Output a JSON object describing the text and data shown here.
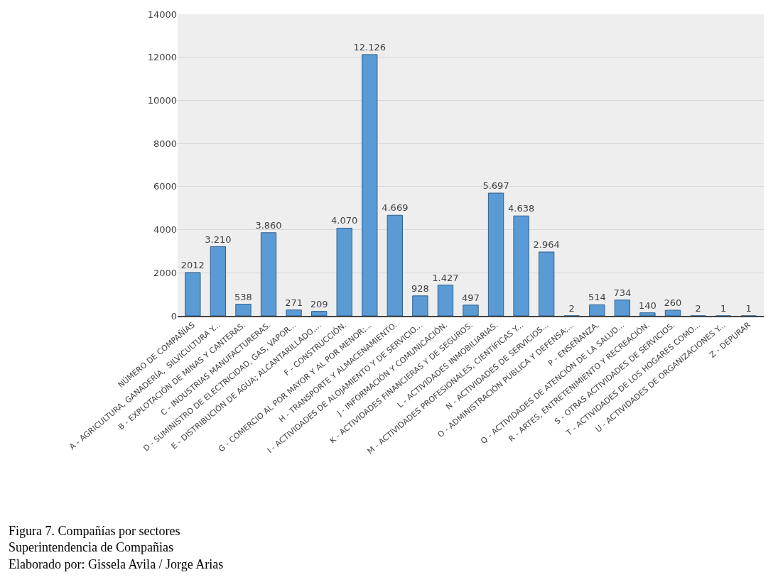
{
  "chart_data": {
    "type": "bar",
    "categories": [
      "NÚMERO DE COMPAÑÍAS",
      "A - AGRICULTURA, GANADERÍA,  SILVICULTURA Y...",
      "B - EXPLOTACIÓN DE MINAS Y CANTERAS.",
      "C - INDUSTRIAS MANUFACTURERAS.",
      "D - SUMINISTRO DE ELECTRICIDAD, GAS, VAPOR...",
      "E - DISTRIBUCIÓN DE AGUA; ALCANTARILLADO,...",
      "F - CONSTRUCCIÓN.",
      "G - COMERCIO AL POR MAYOR Y AL POR MENOR;...",
      "H - TRANSPORTE Y ALMACENAMIENTO.",
      "I - ACTIVIDADES DE ALOJAMIENTO Y DE SERVICIO...",
      "J - INFORMACIÓN Y COMUNICACIÓN.",
      "K - ACTIVIDADES FINANCIERAS Y DE SEGUROS.",
      "L - ACTIVIDADES INMOBILIARIAS.",
      "M - ACTIVIDADES PROFESIONALES, CIENTÍFICAS Y...",
      "N - ACTIVIDADES DE SERVICIOS...",
      "O - ADMINISTRACIÓN PÚBLICA Y DEFENSA;...",
      "P - ENSEÑANZA.",
      "Q - ACTIVIDADES DE ATENCIÓN DE LA SALUD...",
      "R - ARTES, ENTRETENIMIENTO Y RECREACIÓN.",
      "S - OTRAS ACTIVIDADES DE SERVICIOS.",
      "T - ACTIVIDADES DE LOS HOGARES COMO...",
      "U - ACTIVIDADES DE ORGANIZACIONES Y...",
      "Z - DEPURAR"
    ],
    "values": [
      2012,
      3210,
      538,
      3860,
      271,
      209,
      4070,
      12126,
      4669,
      928,
      1427,
      497,
      5697,
      4638,
      2964,
      2,
      514,
      734,
      140,
      260,
      2,
      1,
      1
    ],
    "value_labels": [
      "2012",
      "3.210",
      "538",
      "3.860",
      "271",
      "209",
      "4.070",
      "12.126",
      "4.669",
      "928",
      "1.427",
      "497",
      "5.697",
      "4.638",
      "2.964",
      "2",
      "514",
      "734",
      "140",
      "260",
      "2",
      "1",
      "1"
    ],
    "color": "#5b9bd5",
    "ylim": [
      0,
      14000
    ],
    "yticks": [
      0,
      2000,
      4000,
      6000,
      8000,
      10000,
      12000,
      14000
    ],
    "grid": "y",
    "legend": false,
    "annotations": [
      "Figura 7. Compañías por sectores",
      "Superintendencia de Compañias",
      "Elaborado por: Gissela Avila / Jorge Arias"
    ]
  }
}
